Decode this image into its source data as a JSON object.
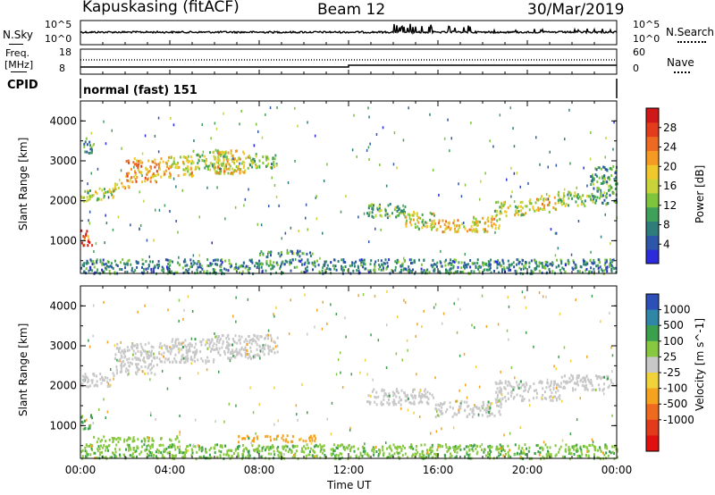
{
  "header": {
    "station": "Kapuskasing (fitACF)",
    "beam": "Beam 12",
    "date": "30/Mar/2019"
  },
  "noise_panel": {
    "left_label": "N.Sky",
    "right_label": "N.Search",
    "ticks": [
      "10^5",
      "10^0"
    ]
  },
  "freq_panel": {
    "left_label_1": "Freq.",
    "left_label_2": "[MHz]",
    "left_ticks": [
      "18",
      "8"
    ],
    "right_label": "Nave",
    "right_ticks": [
      "60",
      "0"
    ]
  },
  "cpid": {
    "label": "CPID",
    "text": "normal (fast) 151"
  },
  "chart_data": [
    {
      "type": "heatmap",
      "title": "",
      "xlabel": "",
      "ylabel": "Slant Range [km]",
      "xlim": [
        0,
        24
      ],
      "ylim": [
        180,
        4500
      ],
      "y_ticks": [
        "1000",
        "2000",
        "3000",
        "4000"
      ],
      "colorbar": {
        "label": "Power [dB]",
        "ticks": [
          "4",
          "8",
          "12",
          "16",
          "20",
          "24",
          "28"
        ],
        "colors": [
          "#2b2bdc",
          "#2d55a8",
          "#2e7d7a",
          "#3fa05a",
          "#7ec43c",
          "#c8d43a",
          "#f0c82c",
          "#f59a22",
          "#ee6a22",
          "#e23c1c",
          "#d01818"
        ]
      },
      "regions": [
        {
          "t0": 0.0,
          "t1": 0.5,
          "r0": 900,
          "r1": 1300,
          "value": 26
        },
        {
          "t0": 0.0,
          "t1": 0.6,
          "r0": 2000,
          "r1": 2300,
          "value": 14
        },
        {
          "t0": 0.1,
          "t1": 0.5,
          "r0": 3200,
          "r1": 3600,
          "value": 10
        },
        {
          "t0": 0.5,
          "t1": 1.5,
          "r0": 2050,
          "r1": 2350,
          "value": 16
        },
        {
          "t0": 1.5,
          "t1": 2.2,
          "r0": 2300,
          "r1": 2600,
          "value": 20
        },
        {
          "t0": 2.0,
          "t1": 3.5,
          "r0": 2500,
          "r1": 3100,
          "value": 22
        },
        {
          "t0": 3.5,
          "t1": 5.0,
          "r0": 2600,
          "r1": 3150,
          "value": 18
        },
        {
          "t0": 5.0,
          "t1": 6.5,
          "r0": 2800,
          "r1": 3300,
          "value": 14
        },
        {
          "t0": 6.0,
          "t1": 7.5,
          "r0": 2700,
          "r1": 3300,
          "value": 18
        },
        {
          "t0": 7.5,
          "t1": 8.8,
          "r0": 2850,
          "r1": 3200,
          "value": 12
        },
        {
          "t0": 8.0,
          "t1": 8.8,
          "r0": 620,
          "r1": 760,
          "value": 10
        },
        {
          "t0": 8.8,
          "t1": 10.5,
          "r0": 640,
          "r1": 780,
          "value": 9
        },
        {
          "t0": 12.8,
          "t1": 14.5,
          "r0": 1600,
          "r1": 1950,
          "value": 12
        },
        {
          "t0": 14.5,
          "t1": 15.8,
          "r0": 1300,
          "r1": 1750,
          "value": 16
        },
        {
          "t0": 15.8,
          "t1": 17.5,
          "r0": 1250,
          "r1": 1550,
          "value": 20
        },
        {
          "t0": 17.5,
          "t1": 18.8,
          "r0": 1250,
          "r1": 1650,
          "value": 18
        },
        {
          "t0": 18.5,
          "t1": 20.0,
          "r0": 1650,
          "r1": 2000,
          "value": 16
        },
        {
          "t0": 20.0,
          "t1": 21.3,
          "r0": 1750,
          "r1": 2150,
          "value": 18
        },
        {
          "t0": 21.3,
          "t1": 22.8,
          "r0": 1900,
          "r1": 2250,
          "value": 14
        },
        {
          "t0": 22.8,
          "t1": 24.0,
          "r0": 1900,
          "r1": 2900,
          "value": 10
        },
        {
          "t0": 0.0,
          "t1": 24.0,
          "r0": 200,
          "r1": 560,
          "value": 8
        }
      ]
    },
    {
      "type": "heatmap",
      "title": "",
      "xlabel": "Time UT",
      "ylabel": "Slant Range [km]",
      "xlim": [
        0,
        24
      ],
      "ylim": [
        180,
        4500
      ],
      "x_ticks": [
        "00:00",
        "04:00",
        "08:00",
        "12:00",
        "16:00",
        "20:00",
        "00:00"
      ],
      "y_ticks": [
        "1000",
        "2000",
        "3000",
        "4000"
      ],
      "colorbar": {
        "label": "Velocity [m s^-1]",
        "ticks": [
          "1000",
          "500",
          "100",
          "25",
          "-25",
          "-100",
          "-500",
          "-1000"
        ],
        "colors": [
          "#2c4fb8",
          "#2f86a6",
          "#3aa04c",
          "#88c840",
          "#c8c8c8",
          "#f0d23a",
          "#f5a21e",
          "#ee6a1e",
          "#e23a1a",
          "#e01010"
        ]
      },
      "regions": [
        {
          "t0": 0.0,
          "t1": 0.5,
          "r0": 900,
          "r1": 1300,
          "value": 150
        },
        {
          "t0": 0.0,
          "t1": 1.5,
          "r0": 2000,
          "r1": 2350,
          "value": 0
        },
        {
          "t0": 1.5,
          "t1": 3.5,
          "r0": 2300,
          "r1": 3100,
          "value": 0
        },
        {
          "t0": 3.5,
          "t1": 6.0,
          "r0": 2600,
          "r1": 3200,
          "value": 0
        },
        {
          "t0": 6.0,
          "t1": 8.8,
          "r0": 2700,
          "r1": 3300,
          "value": 0
        },
        {
          "t0": 0.3,
          "t1": 4.5,
          "r0": 620,
          "r1": 760,
          "value": 60
        },
        {
          "t0": 7.0,
          "t1": 10.5,
          "r0": 620,
          "r1": 780,
          "value": -300
        },
        {
          "t0": 12.8,
          "t1": 15.8,
          "r0": 1550,
          "r1": 1950,
          "value": 0
        },
        {
          "t0": 15.8,
          "t1": 18.8,
          "r0": 1250,
          "r1": 1650,
          "value": 0
        },
        {
          "t0": 18.5,
          "t1": 21.5,
          "r0": 1650,
          "r1": 2150,
          "value": 0
        },
        {
          "t0": 21.5,
          "t1": 24.0,
          "r0": 1900,
          "r1": 2300,
          "value": 0
        },
        {
          "t0": 0.0,
          "t1": 24.0,
          "r0": 200,
          "r1": 560,
          "value": 80
        }
      ]
    }
  ]
}
